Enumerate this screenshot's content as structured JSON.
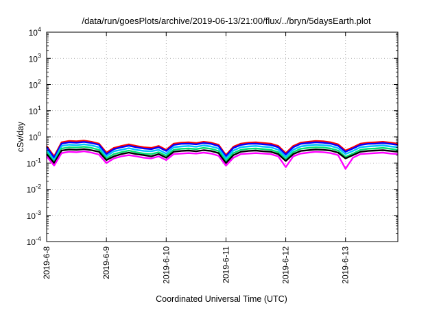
{
  "chart_data": {
    "type": "line",
    "title": "/data/run/goesPlots/archive/2019-06-13/21:00/flux/../bryn/5daysEarth.plot",
    "xlabel": "Coordinated Universal Time (UTC)",
    "ylabel": "cSv/day",
    "scale": {
      "y": "log"
    },
    "grid": true,
    "legend": "none",
    "xlim": [
      "2019-06-08T00:00",
      "2019-06-13T21:00"
    ],
    "ylim": [
      0.0001,
      10000
    ],
    "x_ticks": [
      {
        "t": "2019-06-08T00:00",
        "label": "2019-6-8"
      },
      {
        "t": "2019-06-09T00:00",
        "label": "2019-6-9"
      },
      {
        "t": "2019-06-10T00:00",
        "label": "2019-6-10"
      },
      {
        "t": "2019-06-11T00:00",
        "label": "2019-6-11"
      },
      {
        "t": "2019-06-12T00:00",
        "label": "2019-6-12"
      },
      {
        "t": "2019-06-13T00:00",
        "label": "2019-6-13"
      }
    ],
    "y_ticks": [
      {
        "v": 0.0001,
        "base": "10",
        "exp": "-4"
      },
      {
        "v": 0.001,
        "base": "10",
        "exp": "-3"
      },
      {
        "v": 0.01,
        "base": "10",
        "exp": "-2"
      },
      {
        "v": 0.1,
        "base": "10",
        "exp": "-1"
      },
      {
        "v": 1,
        "base": "10",
        "exp": "0"
      },
      {
        "v": 10,
        "base": "10",
        "exp": "1"
      },
      {
        "v": 100,
        "base": "10",
        "exp": "2"
      },
      {
        "v": 1000,
        "base": "10",
        "exp": "3"
      },
      {
        "v": 10000,
        "base": "10",
        "exp": "4"
      }
    ],
    "x": [
      "2019-06-08T00:00",
      "2019-06-08T03:00",
      "2019-06-08T06:00",
      "2019-06-08T09:00",
      "2019-06-08T12:00",
      "2019-06-08T15:00",
      "2019-06-08T18:00",
      "2019-06-08T21:00",
      "2019-06-09T00:00",
      "2019-06-09T03:00",
      "2019-06-09T06:00",
      "2019-06-09T09:00",
      "2019-06-09T12:00",
      "2019-06-09T15:00",
      "2019-06-09T18:00",
      "2019-06-09T21:00",
      "2019-06-10T00:00",
      "2019-06-10T03:00",
      "2019-06-10T06:00",
      "2019-06-10T09:00",
      "2019-06-10T12:00",
      "2019-06-10T15:00",
      "2019-06-10T18:00",
      "2019-06-10T21:00",
      "2019-06-11T00:00",
      "2019-06-11T03:00",
      "2019-06-11T06:00",
      "2019-06-11T09:00",
      "2019-06-11T12:00",
      "2019-06-11T15:00",
      "2019-06-11T18:00",
      "2019-06-11T21:00",
      "2019-06-12T00:00",
      "2019-06-12T03:00",
      "2019-06-12T06:00",
      "2019-06-12T09:00",
      "2019-06-12T12:00",
      "2019-06-12T15:00",
      "2019-06-12T18:00",
      "2019-06-12T21:00",
      "2019-06-13T00:00",
      "2019-06-13T03:00",
      "2019-06-13T06:00",
      "2019-06-13T09:00",
      "2019-06-13T12:00",
      "2019-06-13T15:00",
      "2019-06-13T18:00",
      "2019-06-13T21:00"
    ],
    "series": [
      {
        "color": "#ff0000",
        "values": [
          0.45,
          0.18,
          0.62,
          0.7,
          0.68,
          0.72,
          0.65,
          0.55,
          0.25,
          0.38,
          0.45,
          0.52,
          0.45,
          0.4,
          0.38,
          0.45,
          0.32,
          0.55,
          0.6,
          0.62,
          0.58,
          0.65,
          0.6,
          0.5,
          0.2,
          0.42,
          0.55,
          0.6,
          0.62,
          0.58,
          0.55,
          0.45,
          0.24,
          0.45,
          0.6,
          0.65,
          0.7,
          0.68,
          0.62,
          0.52,
          0.3,
          0.4,
          0.55,
          0.6,
          0.62,
          0.65,
          0.6,
          0.55
        ]
      },
      {
        "color": "#0000ff",
        "values": [
          0.4,
          0.16,
          0.55,
          0.62,
          0.6,
          0.64,
          0.58,
          0.5,
          0.22,
          0.34,
          0.4,
          0.46,
          0.4,
          0.36,
          0.34,
          0.4,
          0.29,
          0.49,
          0.54,
          0.55,
          0.52,
          0.58,
          0.54,
          0.45,
          0.18,
          0.38,
          0.49,
          0.54,
          0.55,
          0.52,
          0.49,
          0.4,
          0.21,
          0.4,
          0.54,
          0.58,
          0.62,
          0.6,
          0.55,
          0.46,
          0.27,
          0.36,
          0.49,
          0.54,
          0.55,
          0.58,
          0.54,
          0.49
        ]
      },
      {
        "color": "#00bfff",
        "values": [
          0.32,
          0.13,
          0.45,
          0.5,
          0.48,
          0.52,
          0.47,
          0.4,
          0.18,
          0.28,
          0.32,
          0.37,
          0.32,
          0.29,
          0.28,
          0.32,
          0.23,
          0.4,
          0.43,
          0.45,
          0.42,
          0.47,
          0.43,
          0.36,
          0.15,
          0.3,
          0.4,
          0.43,
          0.45,
          0.42,
          0.4,
          0.32,
          0.17,
          0.32,
          0.43,
          0.47,
          0.5,
          0.48,
          0.45,
          0.37,
          0.22,
          0.29,
          0.4,
          0.43,
          0.45,
          0.47,
          0.43,
          0.4
        ]
      },
      {
        "color": "#00e070",
        "values": [
          0.26,
          0.11,
          0.36,
          0.4,
          0.39,
          0.42,
          0.38,
          0.32,
          0.15,
          0.22,
          0.26,
          0.3,
          0.26,
          0.23,
          0.22,
          0.26,
          0.19,
          0.32,
          0.35,
          0.36,
          0.34,
          0.38,
          0.35,
          0.29,
          0.12,
          0.24,
          0.32,
          0.35,
          0.36,
          0.34,
          0.32,
          0.26,
          0.14,
          0.26,
          0.35,
          0.38,
          0.4,
          0.39,
          0.36,
          0.3,
          0.17,
          0.23,
          0.32,
          0.35,
          0.36,
          0.38,
          0.35,
          0.32
        ]
      },
      {
        "color": "#000000",
        "values": [
          0.22,
          0.1,
          0.3,
          0.33,
          0.32,
          0.34,
          0.31,
          0.27,
          0.13,
          0.18,
          0.22,
          0.25,
          0.22,
          0.2,
          0.18,
          0.22,
          0.16,
          0.27,
          0.29,
          0.3,
          0.28,
          0.31,
          0.29,
          0.24,
          0.1,
          0.2,
          0.27,
          0.29,
          0.3,
          0.28,
          0.27,
          0.22,
          0.12,
          0.22,
          0.29,
          0.31,
          0.33,
          0.32,
          0.3,
          0.25,
          0.15,
          0.2,
          0.27,
          0.29,
          0.3,
          0.31,
          0.29,
          0.27
        ]
      },
      {
        "color": "#ff00ff",
        "values": [
          0.18,
          0.08,
          0.24,
          0.27,
          0.26,
          0.28,
          0.25,
          0.21,
          0.1,
          0.15,
          0.18,
          0.2,
          0.18,
          0.16,
          0.15,
          0.18,
          0.13,
          0.22,
          0.23,
          0.24,
          0.23,
          0.25,
          0.23,
          0.19,
          0.08,
          0.16,
          0.22,
          0.23,
          0.24,
          0.23,
          0.22,
          0.18,
          0.07,
          0.18,
          0.23,
          0.25,
          0.27,
          0.26,
          0.24,
          0.2,
          0.06,
          0.16,
          0.22,
          0.23,
          0.24,
          0.25,
          0.23,
          0.22
        ]
      }
    ]
  }
}
